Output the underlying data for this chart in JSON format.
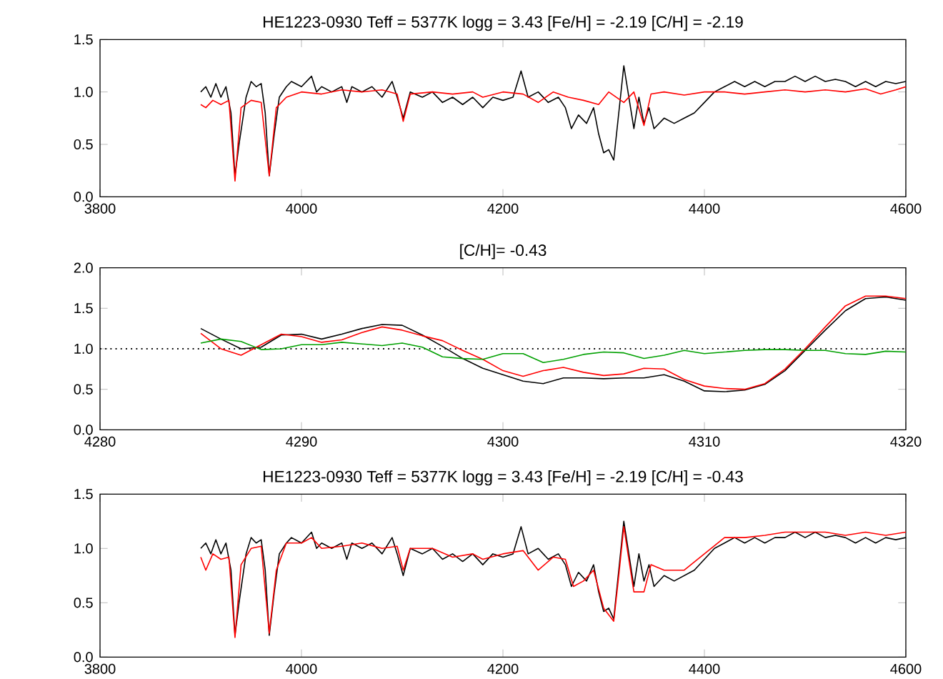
{
  "chart_data": [
    {
      "type": "line",
      "title": "HE1223-0930    Teff = 5377K    logg = 3.43    [Fe/H] = -2.19    [C/H] = -2.19",
      "xlim": [
        3800,
        4600
      ],
      "ylim": [
        0,
        1.5
      ],
      "xticks": [
        3800,
        4000,
        4200,
        4400,
        4600
      ],
      "yticks": [
        {
          "value": 0,
          "label": "0.0"
        },
        {
          "value": 0.5,
          "label": "0.5"
        },
        {
          "value": 1,
          "label": "1.0"
        },
        {
          "value": 1.5,
          "label": "1.5"
        }
      ],
      "series": [
        {
          "color": "#000000",
          "x": [
            3900,
            3905,
            3910,
            3915,
            3920,
            3925,
            3930,
            3934,
            3938,
            3945,
            3950,
            3955,
            3960,
            3964,
            3968,
            3973,
            3978,
            3985,
            3990,
            4000,
            4010,
            4015,
            4020,
            4030,
            4040,
            4045,
            4050,
            4060,
            4070,
            4080,
            4090,
            4095,
            4101,
            4108,
            4120,
            4130,
            4140,
            4150,
            4160,
            4170,
            4180,
            4190,
            4200,
            4210,
            4218,
            4225,
            4235,
            4245,
            4255,
            4262,
            4268,
            4275,
            4283,
            4290,
            4295,
            4300,
            4305,
            4310,
            4315,
            4320,
            4325,
            4330,
            4335,
            4340,
            4345,
            4350,
            4360,
            4370,
            4380,
            4390,
            4400,
            4410,
            4420,
            4430,
            4440,
            4450,
            4460,
            4470,
            4480,
            4490,
            4500,
            4510,
            4520,
            4530,
            4540,
            4550,
            4560,
            4570,
            4580,
            4590,
            4600
          ],
          "values": [
            1.0,
            1.05,
            0.95,
            1.08,
            0.95,
            1.05,
            0.8,
            0.2,
            0.5,
            0.95,
            1.1,
            1.05,
            1.08,
            0.8,
            0.2,
            0.6,
            0.95,
            1.05,
            1.1,
            1.05,
            1.15,
            1.0,
            1.05,
            1.0,
            1.05,
            0.9,
            1.05,
            1.0,
            1.05,
            0.95,
            1.1,
            0.95,
            0.75,
            1.0,
            0.95,
            1.0,
            0.9,
            0.95,
            0.88,
            0.95,
            0.85,
            0.95,
            0.92,
            0.95,
            1.2,
            0.95,
            1.0,
            0.9,
            0.95,
            0.85,
            0.65,
            0.78,
            0.7,
            0.85,
            0.6,
            0.42,
            0.45,
            0.35,
            0.8,
            1.25,
            0.95,
            0.65,
            0.95,
            0.7,
            0.85,
            0.65,
            0.75,
            0.7,
            0.75,
            0.8,
            0.9,
            1.0,
            1.05,
            1.1,
            1.05,
            1.1,
            1.05,
            1.1,
            1.1,
            1.15,
            1.1,
            1.15,
            1.1,
            1.12,
            1.1,
            1.05,
            1.1,
            1.05,
            1.1,
            1.08,
            1.1
          ]
        },
        {
          "color": "#ff0000",
          "x": [
            3900,
            3905,
            3912,
            3920,
            3928,
            3934,
            3940,
            3950,
            3960,
            3968,
            3975,
            3985,
            4000,
            4020,
            4040,
            4060,
            4080,
            4095,
            4101,
            4108,
            4130,
            4150,
            4170,
            4180,
            4200,
            4220,
            4235,
            4250,
            4265,
            4280,
            4295,
            4305,
            4320,
            4330,
            4340,
            4347,
            4360,
            4380,
            4400,
            4420,
            4440,
            4460,
            4480,
            4500,
            4520,
            4540,
            4560,
            4575,
            4590,
            4600
          ],
          "values": [
            0.88,
            0.85,
            0.92,
            0.88,
            0.92,
            0.15,
            0.85,
            0.92,
            0.9,
            0.2,
            0.85,
            0.95,
            1.0,
            0.98,
            1.02,
            1.0,
            1.02,
            0.98,
            0.72,
            0.98,
            1.0,
            0.98,
            1.0,
            0.95,
            1.0,
            0.98,
            0.9,
            1.0,
            0.95,
            0.92,
            0.88,
            1.0,
            0.9,
            1.0,
            0.68,
            0.98,
            1.0,
            0.97,
            1.0,
            1.0,
            0.98,
            1.0,
            1.02,
            1.0,
            1.02,
            1.0,
            1.03,
            0.98,
            1.02,
            1.05
          ]
        }
      ]
    },
    {
      "type": "line",
      "title": "[C/H]= -0.43",
      "xlim": [
        4280,
        4320
      ],
      "ylim": [
        0,
        2
      ],
      "xticks": [
        4280,
        4290,
        4300,
        4310,
        4320
      ],
      "yticks": [
        {
          "value": 0,
          "label": "0.0"
        },
        {
          "value": 0.5,
          "label": "0.5"
        },
        {
          "value": 1,
          "label": "1.0"
        },
        {
          "value": 1.5,
          "label": "1.5"
        },
        {
          "value": 2,
          "label": "2.0"
        }
      ],
      "ref_lines": [
        {
          "axis": "y",
          "value": 1,
          "color": "#000000",
          "line_style": "dotted"
        }
      ],
      "series": [
        {
          "color": "#000000",
          "x": [
            4285,
            4286,
            4287,
            4288,
            4289,
            4290,
            4291,
            4292,
            4293,
            4294,
            4295,
            4296,
            4297,
            4298,
            4299,
            4300,
            4301,
            4302,
            4303,
            4304,
            4305,
            4306,
            4307,
            4308,
            4309,
            4310,
            4311,
            4312,
            4313,
            4314,
            4315,
            4316,
            4317,
            4318,
            4319,
            4320
          ],
          "values": [
            1.25,
            1.12,
            1.0,
            1.02,
            1.17,
            1.18,
            1.12,
            1.18,
            1.25,
            1.3,
            1.29,
            1.17,
            1.03,
            0.88,
            0.76,
            0.68,
            0.6,
            0.57,
            0.64,
            0.64,
            0.63,
            0.64,
            0.64,
            0.68,
            0.6,
            0.48,
            0.47,
            0.49,
            0.56,
            0.73,
            0.98,
            1.23,
            1.47,
            1.62,
            1.64,
            1.6
          ]
        },
        {
          "color": "#ff0000",
          "x": [
            4285,
            4286,
            4287,
            4288,
            4289,
            4290,
            4291,
            4292,
            4293,
            4294,
            4295,
            4296,
            4297,
            4298,
            4299,
            4300,
            4301,
            4302,
            4303,
            4304,
            4305,
            4306,
            4307,
            4308,
            4309,
            4310,
            4311,
            4312,
            4313,
            4314,
            4315,
            4316,
            4317,
            4318,
            4319,
            4320
          ],
          "values": [
            1.19,
            1.0,
            0.92,
            1.05,
            1.18,
            1.15,
            1.08,
            1.11,
            1.2,
            1.27,
            1.23,
            1.16,
            1.1,
            0.98,
            0.87,
            0.73,
            0.66,
            0.73,
            0.77,
            0.71,
            0.67,
            0.69,
            0.76,
            0.75,
            0.62,
            0.54,
            0.51,
            0.5,
            0.57,
            0.75,
            1.0,
            1.27,
            1.53,
            1.65,
            1.65,
            1.62
          ]
        },
        {
          "color": "#00a000",
          "x": [
            4285,
            4286,
            4287,
            4288,
            4289,
            4290,
            4291,
            4292,
            4293,
            4294,
            4295,
            4296,
            4297,
            4298,
            4299,
            4300,
            4301,
            4302,
            4303,
            4304,
            4305,
            4306,
            4307,
            4308,
            4309,
            4310,
            4311,
            4312,
            4313,
            4314,
            4315,
            4316,
            4317,
            4318,
            4319,
            4320
          ],
          "values": [
            1.07,
            1.12,
            1.09,
            0.99,
            1.0,
            1.05,
            1.05,
            1.08,
            1.06,
            1.04,
            1.07,
            1.02,
            0.9,
            0.88,
            0.87,
            0.94,
            0.94,
            0.83,
            0.87,
            0.93,
            0.96,
            0.95,
            0.88,
            0.92,
            0.98,
            0.94,
            0.96,
            0.98,
            0.99,
            0.99,
            0.98,
            0.98,
            0.94,
            0.93,
            0.97,
            0.96
          ]
        }
      ]
    },
    {
      "type": "line",
      "title": "HE1223-0930    Teff = 5377K    logg = 3.43    [Fe/H] = -2.19    [C/H] = -0.43",
      "xlim": [
        3800,
        4600
      ],
      "ylim": [
        0,
        1.5
      ],
      "xticks": [
        3800,
        4000,
        4200,
        4400,
        4600
      ],
      "yticks": [
        {
          "value": 0,
          "label": "0.0"
        },
        {
          "value": 0.5,
          "label": "0.5"
        },
        {
          "value": 1,
          "label": "1.0"
        },
        {
          "value": 1.5,
          "label": "1.5"
        }
      ],
      "series": [
        {
          "color": "#000000",
          "x": [
            3900,
            3905,
            3910,
            3915,
            3920,
            3925,
            3930,
            3934,
            3938,
            3945,
            3950,
            3955,
            3960,
            3964,
            3968,
            3973,
            3978,
            3985,
            3990,
            4000,
            4010,
            4015,
            4020,
            4030,
            4040,
            4045,
            4050,
            4060,
            4070,
            4080,
            4090,
            4095,
            4101,
            4108,
            4120,
            4130,
            4140,
            4150,
            4160,
            4170,
            4180,
            4190,
            4200,
            4210,
            4218,
            4225,
            4235,
            4245,
            4255,
            4262,
            4268,
            4275,
            4283,
            4290,
            4295,
            4300,
            4305,
            4310,
            4315,
            4320,
            4325,
            4330,
            4335,
            4340,
            4345,
            4350,
            4360,
            4370,
            4380,
            4390,
            4400,
            4410,
            4420,
            4430,
            4440,
            4450,
            4460,
            4470,
            4480,
            4490,
            4500,
            4510,
            4520,
            4530,
            4540,
            4550,
            4560,
            4570,
            4580,
            4590,
            4600
          ],
          "values": [
            1.0,
            1.05,
            0.95,
            1.08,
            0.95,
            1.05,
            0.8,
            0.2,
            0.5,
            0.95,
            1.1,
            1.05,
            1.08,
            0.8,
            0.2,
            0.6,
            0.95,
            1.05,
            1.1,
            1.05,
            1.15,
            1.0,
            1.05,
            1.0,
            1.05,
            0.9,
            1.05,
            1.0,
            1.05,
            0.95,
            1.1,
            0.95,
            0.75,
            1.0,
            0.95,
            1.0,
            0.9,
            0.95,
            0.88,
            0.95,
            0.85,
            0.95,
            0.92,
            0.95,
            1.2,
            0.95,
            1.0,
            0.9,
            0.95,
            0.85,
            0.65,
            0.78,
            0.7,
            0.85,
            0.6,
            0.42,
            0.45,
            0.35,
            0.8,
            1.25,
            0.95,
            0.65,
            0.95,
            0.7,
            0.85,
            0.65,
            0.75,
            0.7,
            0.75,
            0.8,
            0.9,
            1.0,
            1.05,
            1.1,
            1.05,
            1.1,
            1.05,
            1.1,
            1.1,
            1.15,
            1.1,
            1.15,
            1.1,
            1.12,
            1.1,
            1.05,
            1.1,
            1.05,
            1.1,
            1.08,
            1.1
          ]
        },
        {
          "color": "#ff0000",
          "x": [
            3900,
            3905,
            3912,
            3920,
            3928,
            3934,
            3940,
            3950,
            3960,
            3968,
            3975,
            3985,
            4000,
            4010,
            4020,
            4040,
            4060,
            4080,
            4095,
            4101,
            4108,
            4130,
            4150,
            4170,
            4180,
            4200,
            4220,
            4235,
            4250,
            4262,
            4270,
            4280,
            4290,
            4300,
            4310,
            4315,
            4320,
            4325,
            4330,
            4340,
            4347,
            4360,
            4380,
            4400,
            4420,
            4440,
            4460,
            4480,
            4500,
            4520,
            4540,
            4560,
            4580,
            4600
          ],
          "values": [
            0.92,
            0.8,
            0.95,
            0.9,
            0.92,
            0.18,
            0.85,
            1.0,
            1.02,
            0.22,
            0.8,
            1.05,
            1.05,
            1.1,
            1.0,
            1.02,
            1.05,
            1.0,
            1.02,
            0.8,
            1.0,
            1.0,
            0.92,
            0.95,
            0.9,
            0.95,
            0.98,
            0.8,
            0.92,
            0.9,
            0.65,
            0.7,
            0.8,
            0.45,
            0.33,
            0.75,
            1.2,
            0.9,
            0.6,
            0.6,
            0.85,
            0.8,
            0.8,
            0.95,
            1.1,
            1.1,
            1.12,
            1.15,
            1.15,
            1.15,
            1.12,
            1.15,
            1.12,
            1.15
          ]
        }
      ]
    }
  ]
}
